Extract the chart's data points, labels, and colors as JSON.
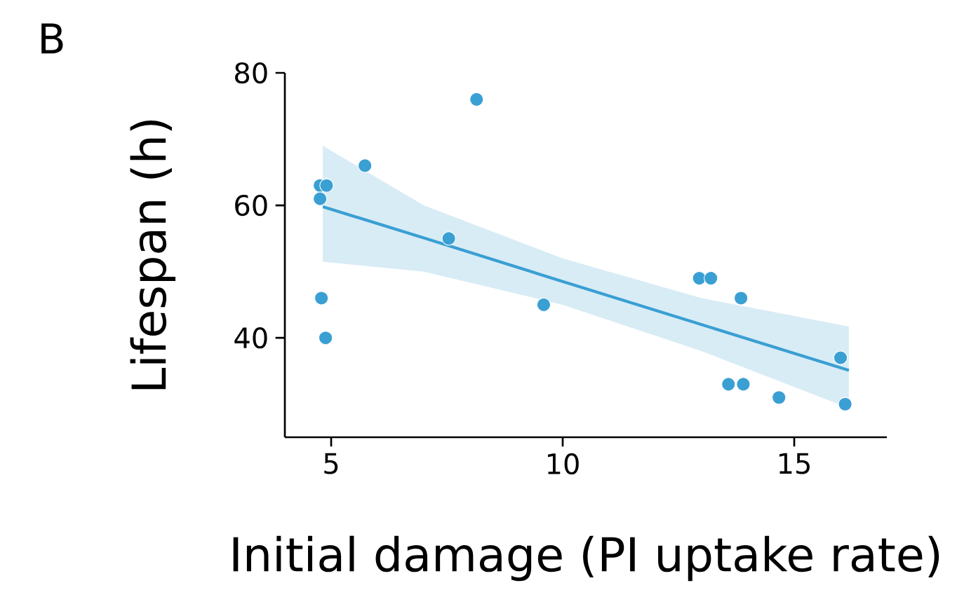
{
  "chart_data": {
    "type": "scatter",
    "xlabel": "Initial damage (PI uptake rate)",
    "ylabel": "Lifespan (h)",
    "annotations": [
      "B"
    ],
    "xlim": [
      4,
      17
    ],
    "ylim": [
      25,
      80
    ],
    "xticks": [
      5,
      10,
      15
    ],
    "yticks": [
      40,
      60,
      80
    ],
    "grid": false,
    "series": [
      {
        "marker": "circle",
        "color": "#3a9fd3",
        "x": [
          4.76,
          4.9,
          4.76,
          4.79,
          4.88,
          5.73,
          7.54,
          8.14,
          9.59,
          12.95,
          13.2,
          13.85,
          13.58,
          13.9,
          14.67,
          16.0,
          16.1
        ],
        "values": [
          63,
          63,
          61,
          46,
          40,
          66,
          55,
          76,
          45,
          49,
          49,
          46,
          33,
          33,
          31,
          37,
          30
        ]
      },
      {
        "type": "line",
        "marker": "none",
        "color": "#3a9fd3",
        "x": [
          4.82,
          7,
          10,
          13,
          16.18
        ],
        "values": [
          59.8,
          55.1,
          48.5,
          42.0,
          35.1
        ],
        "lower": [
          51.5,
          50,
          45,
          38,
          29.4
        ],
        "upper": [
          69,
          60,
          52,
          46,
          41.7
        ]
      }
    ]
  }
}
